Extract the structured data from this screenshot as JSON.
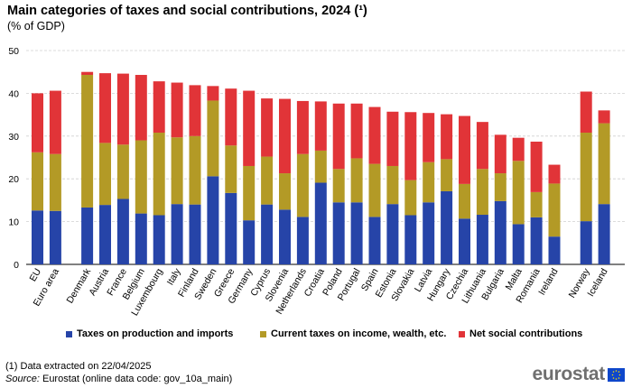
{
  "header": {
    "title": "Main categories of taxes and social contributions, 2024 (¹)",
    "subtitle": "(% of GDP)"
  },
  "chart_data": {
    "type": "bar",
    "stacked": true,
    "title": "Main categories of taxes and social contributions, 2024 (¹)",
    "ylabel": "% of GDP",
    "ylim": [
      0,
      50
    ],
    "yticks": [
      0,
      10,
      20,
      30,
      40,
      50
    ],
    "grid": true,
    "legend_position": "bottom",
    "categories": [
      "EU",
      "Euro area",
      "Denmark",
      "Austria",
      "France",
      "Belgium",
      "Luxembourg",
      "Italy",
      "Finland",
      "Sweden",
      "Greece",
      "Germany",
      "Cyprus",
      "Slovenia",
      "Netherlands",
      "Croatia",
      "Poland",
      "Portugal",
      "Spain",
      "Estonia",
      "Slovakia",
      "Latvia",
      "Hungary",
      "Czechia",
      "Lithuania",
      "Bulgaria",
      "Malta",
      "Romania",
      "Ireland",
      "Norway",
      "Iceland"
    ],
    "groups": [
      [
        0,
        1
      ],
      [
        2,
        28
      ],
      [
        29,
        30
      ]
    ],
    "series": [
      {
        "name": "Taxes on production and imports",
        "color": "#2644a8",
        "values": [
          12.6,
          12.5,
          13.3,
          13.9,
          15.3,
          11.9,
          11.5,
          14.1,
          14.0,
          20.6,
          16.7,
          10.3,
          14.0,
          12.8,
          11.1,
          19.1,
          14.5,
          14.5,
          11.1,
          14.1,
          11.5,
          14.5,
          17.1,
          10.7,
          11.6,
          14.8,
          9.4,
          11.0,
          6.5,
          10.1,
          14.1
        ]
      },
      {
        "name": "Current taxes on income, wealth, etc.",
        "color": "#b39a26",
        "values": [
          13.6,
          13.3,
          31.0,
          14.5,
          12.7,
          17.1,
          19.3,
          15.6,
          16.0,
          17.7,
          11.1,
          12.7,
          11.2,
          8.5,
          14.7,
          7.5,
          7.8,
          10.3,
          12.4,
          8.9,
          8.2,
          9.4,
          7.5,
          8.1,
          10.7,
          6.5,
          14.8,
          5.9,
          12.4,
          20.7,
          18.9
        ]
      },
      {
        "name": "Net social contributions",
        "color": "#e13438",
        "values": [
          13.8,
          14.8,
          0.7,
          16.3,
          16.6,
          15.3,
          12.0,
          12.8,
          11.9,
          3.4,
          13.3,
          17.6,
          13.6,
          17.4,
          12.4,
          11.5,
          15.3,
          12.8,
          13.3,
          12.7,
          15.9,
          11.5,
          10.5,
          15.9,
          11.0,
          9.0,
          5.4,
          11.8,
          4.4,
          9.6,
          3.0
        ]
      }
    ]
  },
  "footer": {
    "footnote": "(1) Data extracted on 22/04/2025",
    "source_label": "Source:",
    "source_text": " Eurostat (online data code: gov_10a_main)",
    "logo_text": "eurostat"
  }
}
